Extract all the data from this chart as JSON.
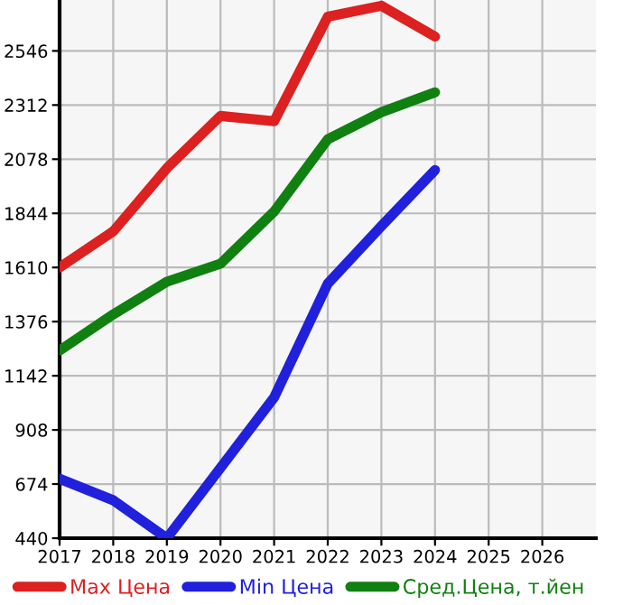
{
  "chart_data": {
    "type": "line",
    "x": [
      2017,
      2018,
      2019,
      2020,
      2021,
      2022,
      2023,
      2024
    ],
    "series": [
      {
        "name": "Max Цена",
        "color": "#dd2020",
        "values": [
          1610,
          1766,
          2039,
          2265,
          2242,
          2694,
          2741,
          2608
        ]
      },
      {
        "name": "Min Цена",
        "color": "#2020dd",
        "values": [
          697,
          604,
          440,
          744,
          1048,
          1540,
          1789,
          2031
        ]
      },
      {
        "name": "Сред.Цена, т.йен",
        "color": "#108010",
        "values": [
          1251,
          1407,
          1548,
          1626,
          1852,
          2164,
          2281,
          2367
        ]
      }
    ],
    "xlim": [
      2017,
      2027
    ],
    "xticks": [
      2017,
      2018,
      2019,
      2020,
      2021,
      2022,
      2023,
      2024,
      2025,
      2026
    ],
    "ylim": [
      440,
      2766
    ],
    "yticks": [
      440,
      674,
      908,
      1142,
      1376,
      1610,
      1844,
      2078,
      2312,
      2546
    ],
    "grid": true,
    "legend": "bottom",
    "marker": "none",
    "line_style": "solid"
  }
}
